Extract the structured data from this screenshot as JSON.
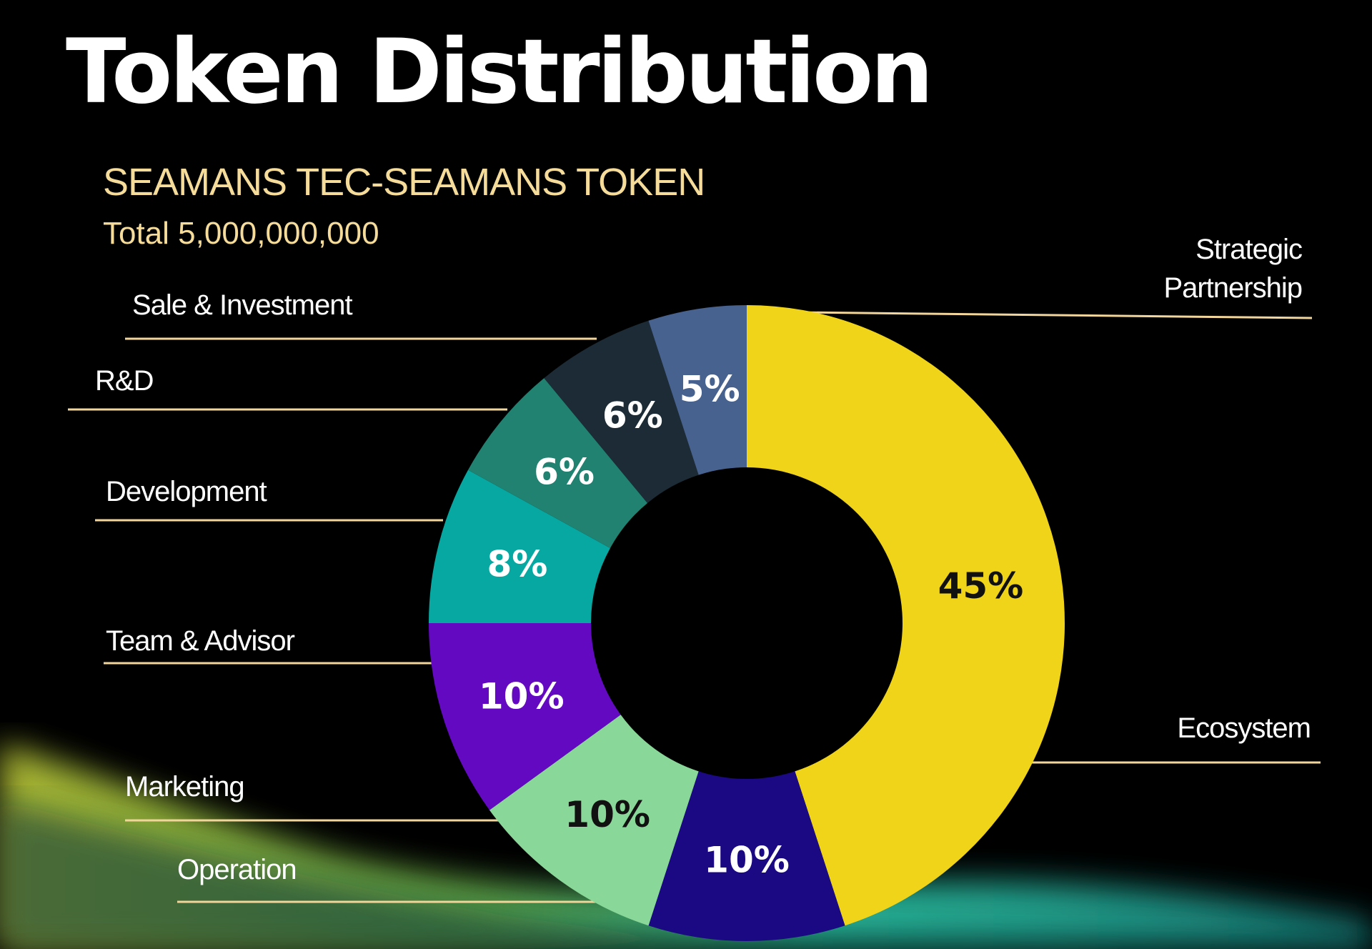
{
  "page": {
    "title": "Token Distribution",
    "subtitle": "SEAMANS TEC-SEAMANS TOKEN",
    "total": "Total 5,000,000,000"
  },
  "colors": {
    "background": "#000000",
    "subtitle_text": "#f6dc9a",
    "leader_line": "#f1d59a"
  },
  "chart_data": {
    "type": "pie",
    "title": "Token Distribution",
    "subtitle": "SEAMANS TEC-SEAMANS TOKEN",
    "donut": true,
    "start_at": "top, clockwise",
    "slices": [
      {
        "label": "Ecosystem",
        "value": 45,
        "display": "45%",
        "color": "#f0d419",
        "text_color": "#111111"
      },
      {
        "label": "Operation",
        "value": 10,
        "display": "10%",
        "color": "#1b0983",
        "text_color": "#ffffff"
      },
      {
        "label": "Marketing",
        "value": 10,
        "display": "10%",
        "color": "#8ad899",
        "text_color": "#111111"
      },
      {
        "label": "Team & Advisor",
        "value": 10,
        "display": "10%",
        "color": "#6409c2",
        "text_color": "#ffffff"
      },
      {
        "label": "Development",
        "value": 8,
        "display": "8%",
        "color": "#07a8a1",
        "text_color": "#ffffff"
      },
      {
        "label": "R&D",
        "value": 6,
        "display": "6%",
        "color": "#218272",
        "text_color": "#ffffff"
      },
      {
        "label": "Sale & Investment",
        "value": 6,
        "display": "6%",
        "color": "#1c2b35",
        "text_color": "#ffffff"
      },
      {
        "label": "Strategic Partnership",
        "value": 5,
        "display": "5%",
        "color": "#47628e",
        "text_color": "#ffffff"
      }
    ]
  },
  "legend_labels": {
    "strategic_line1": "Strategic",
    "strategic_line2": "Partnership",
    "sale": "Sale & Investment",
    "rnd": "R&D",
    "development": "Development",
    "team": "Team & Advisor",
    "ecosystem": "Ecosystem",
    "marketing": "Marketing",
    "operation": "Operation"
  }
}
